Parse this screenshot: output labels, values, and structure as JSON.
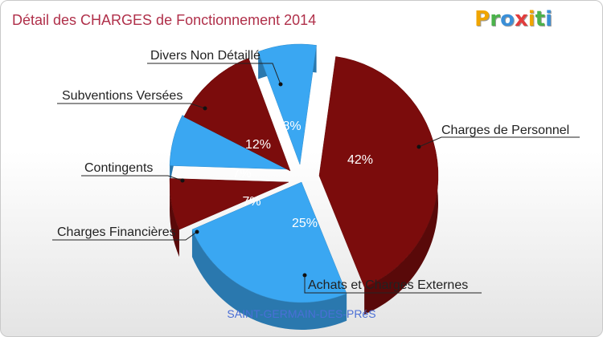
{
  "header": {
    "title": "Détail des CHARGES de Fonctionnement 2014",
    "logo_letters": [
      {
        "ch": "P",
        "color": "#f0a500"
      },
      {
        "ch": "r",
        "color": "#4bb24b"
      },
      {
        "ch": "o",
        "color": "#3a8fd8"
      },
      {
        "ch": "x",
        "color": "#e23c3c"
      },
      {
        "ch": "i",
        "color": "#f0a500"
      },
      {
        "ch": "t",
        "color": "#4bb24b"
      },
      {
        "ch": "i",
        "color": "#3a8fd8"
      }
    ]
  },
  "footer": {
    "commune": "SAINT-GERMAIN-DES-PRéS"
  },
  "chart_data": {
    "type": "pie",
    "title": "Détail des CHARGES de Fonctionnement 2014",
    "slices": [
      {
        "name": "Charges de Personnel",
        "value": 42,
        "label": "42%",
        "color": "#7b0c0c"
      },
      {
        "name": "Achats et Charges Externes",
        "value": 25,
        "label": "25%",
        "color": "#3aa7f2"
      },
      {
        "name": "Charges Financières",
        "value": 7,
        "label": "7%",
        "color": "#7b0c0c"
      },
      {
        "name": "Contingents",
        "value": 7,
        "label": "7%",
        "color": "#3aa7f2"
      },
      {
        "name": "Subventions Versées",
        "value": 12,
        "label": "12%",
        "color": "#7b0c0c"
      },
      {
        "name": "Divers Non Détaillé",
        "value": 8,
        "label": "8%",
        "color": "#3aa7f2"
      }
    ]
  }
}
